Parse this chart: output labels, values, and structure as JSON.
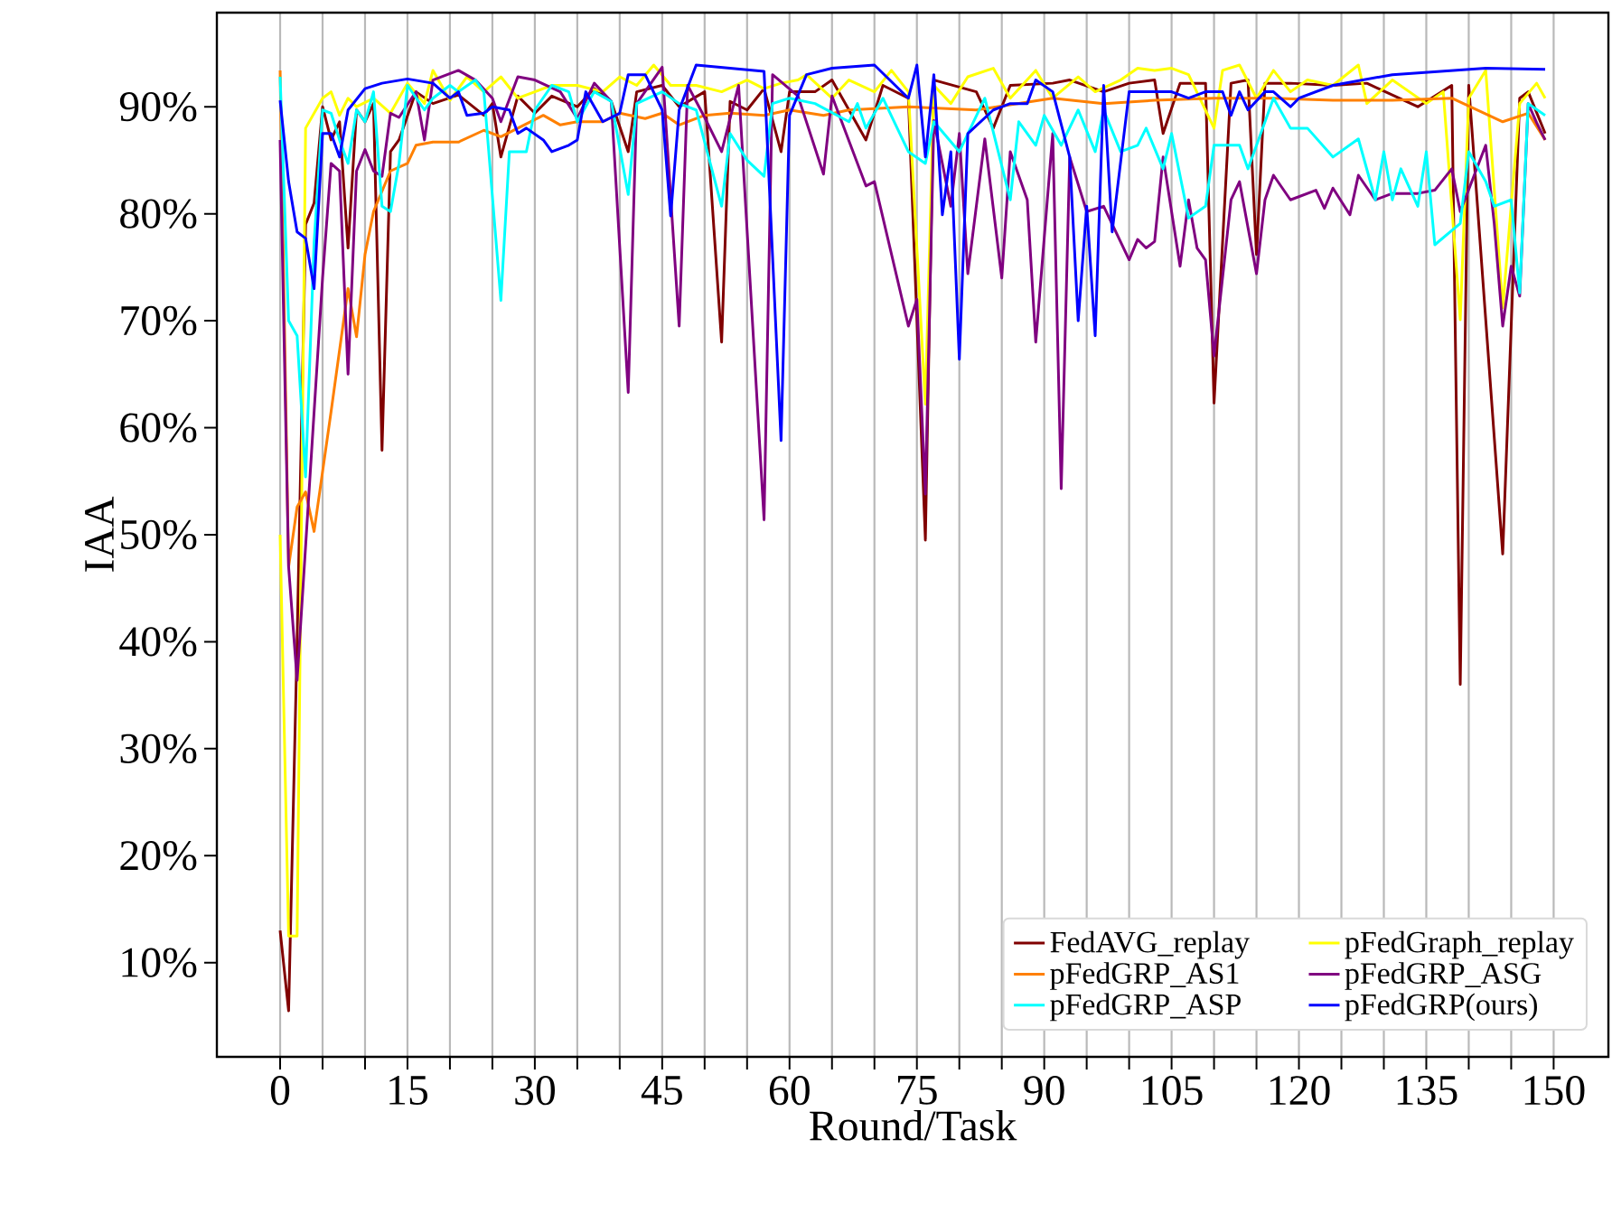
{
  "chart_data": {
    "type": "line",
    "xlabel": "Round/Task",
    "ylabel": "IAA",
    "xlim": [
      -7.45,
      156.45
    ],
    "ylim": [
      1.2,
      98.8
    ],
    "xticks": [
      0,
      {
        "value": 5,
        "label": null
      },
      {
        "value": 10,
        "label": null
      },
      15,
      {
        "value": 20,
        "label": null
      },
      {
        "value": 25,
        "label": null
      },
      30,
      {
        "value": 35,
        "label": null
      },
      {
        "value": 40,
        "label": null
      },
      45,
      {
        "value": 50,
        "label": null
      },
      {
        "value": 55,
        "label": null
      },
      60,
      {
        "value": 65,
        "label": null
      },
      {
        "value": 70,
        "label": null
      },
      75,
      {
        "value": 80,
        "label": null
      },
      {
        "value": 85,
        "label": null
      },
      90,
      {
        "value": 95,
        "label": null
      },
      {
        "value": 100,
        "label": null
      },
      105,
      {
        "value": 110,
        "label": null
      },
      {
        "value": 115,
        "label": null
      },
      120,
      {
        "value": 125,
        "label": null
      },
      {
        "value": 130,
        "label": null
      },
      135,
      {
        "value": 140,
        "label": null
      },
      {
        "value": 145,
        "label": null
      },
      150
    ],
    "yticks": [
      {
        "value": 10,
        "label": "10%"
      },
      {
        "value": 20,
        "label": "20%"
      },
      {
        "value": 30,
        "label": "30%"
      },
      {
        "value": 40,
        "label": "40%"
      },
      {
        "value": 50,
        "label": "50%"
      },
      {
        "value": 60,
        "label": "60%"
      },
      {
        "value": 70,
        "label": "70%"
      },
      {
        "value": 80,
        "label": "80%"
      },
      {
        "value": 90,
        "label": "90%"
      }
    ],
    "grid": "x",
    "legend": "bottom right",
    "marker": "none",
    "line_style": "solid",
    "series": [
      {
        "name": "FedAVG_replay",
        "color": "#800000",
        "x": [
          0,
          1,
          2,
          3,
          4,
          5,
          6,
          7,
          8,
          9,
          10,
          11,
          12,
          13,
          14,
          16,
          18,
          21,
          24,
          25,
          26,
          28,
          30,
          32,
          35,
          37,
          39,
          41,
          42,
          45,
          47,
          50,
          52,
          53,
          55,
          57,
          59,
          60,
          63,
          65,
          69,
          71,
          74,
          76,
          77,
          82,
          84,
          86,
          91,
          93,
          97,
          100,
          103,
          104,
          106,
          109,
          110,
          112,
          114,
          115,
          116,
          119,
          124,
          128,
          134,
          138,
          139,
          140,
          144,
          146,
          147,
          149
        ],
        "values": [
          13,
          5.5,
          40,
          79,
          81,
          90,
          86.9,
          88.6,
          76.8,
          89.7,
          88.6,
          90.3,
          57.9,
          85.8,
          86.9,
          91.4,
          90.3,
          91.1,
          89.2,
          90.3,
          85.3,
          91,
          89.4,
          91,
          90,
          91.7,
          90.5,
          85.8,
          91.4,
          92,
          90,
          91.4,
          68,
          90.5,
          89.7,
          91.7,
          85.8,
          91.4,
          91.4,
          92.5,
          86.9,
          92,
          90.8,
          49.5,
          92.5,
          91.4,
          88,
          92,
          92.2,
          92.5,
          91.4,
          92.2,
          92.5,
          87.5,
          92.2,
          92.2,
          62.3,
          92.2,
          92.5,
          76.2,
          92.2,
          92.2,
          92,
          92.2,
          90,
          92,
          36,
          92,
          48.2,
          90.8,
          91.4,
          87.5
        ]
      },
      {
        "name": "pFedGraph_replay",
        "color": "#ffff00",
        "x": [
          0,
          1,
          2,
          3,
          5,
          6,
          7,
          8,
          9,
          11,
          13,
          15,
          17,
          18,
          20,
          22,
          24,
          26,
          28,
          30,
          32,
          35,
          38,
          40,
          42,
          44,
          46,
          49,
          52,
          55,
          57,
          59,
          61,
          62,
          65,
          67,
          70,
          72,
          74,
          76,
          77,
          79,
          81,
          84,
          86,
          89,
          91,
          94,
          96,
          99,
          101,
          103,
          105,
          107,
          110,
          111,
          113,
          115,
          117,
          119,
          121,
          124,
          127,
          128,
          131,
          135,
          137,
          139,
          140,
          142,
          144,
          146,
          148,
          149
        ],
        "values": [
          50,
          12.5,
          12.5,
          88,
          90.8,
          91.4,
          89.2,
          90.8,
          90,
          90.8,
          89.4,
          92.2,
          90.3,
          93.4,
          90.6,
          92.8,
          91.4,
          92.8,
          90.8,
          91.4,
          92,
          92,
          91.4,
          92.8,
          92,
          93.9,
          92,
          92,
          91.4,
          92.5,
          91.7,
          92.2,
          92.5,
          93,
          90.8,
          92.5,
          91.4,
          93.4,
          91.4,
          62.2,
          92,
          90.3,
          92.8,
          93.6,
          90.8,
          93.4,
          90.8,
          92.8,
          91.4,
          92.5,
          93.6,
          93.4,
          93.6,
          93,
          88,
          93.4,
          93.9,
          90.8,
          93.4,
          91.4,
          92.5,
          92,
          93.9,
          90.3,
          92.5,
          90.3,
          91.4,
          70.1,
          90.8,
          93.4,
          71.2,
          90.3,
          92.2,
          90.8
        ]
      },
      {
        "name": "pFedGRP_AS1",
        "color": "#ff8000",
        "x": [
          0,
          1,
          2,
          3,
          4,
          6,
          8,
          9,
          10,
          11,
          13,
          15,
          16,
          18,
          21,
          24,
          26,
          28,
          31,
          33,
          35,
          38,
          40,
          43,
          45,
          47,
          50,
          53,
          57,
          60,
          64,
          67,
          74,
          82,
          91,
          97,
          103,
          110,
          117,
          124,
          131,
          138,
          144,
          147,
          149
        ],
        "values": [
          93.4,
          47,
          52.6,
          54,
          50.3,
          61.5,
          73,
          68.5,
          76.2,
          80.2,
          84,
          84.7,
          86.4,
          86.7,
          86.7,
          87.8,
          87.2,
          88,
          89.2,
          88.3,
          88.6,
          88.6,
          89.4,
          88.9,
          89.4,
          88.3,
          89.2,
          89.4,
          89.2,
          89.7,
          89.2,
          89.7,
          90,
          89.7,
          90.8,
          90.3,
          90.6,
          90.8,
          90.8,
          90.6,
          90.6,
          90.8,
          88.6,
          89.4,
          86.9
        ]
      },
      {
        "name": "pFedGRP_ASG",
        "color": "#800080",
        "x": [
          0,
          1,
          2,
          5,
          6,
          7,
          8,
          9,
          10,
          11,
          12,
          13,
          14,
          16,
          17,
          18,
          21,
          23,
          25,
          26,
          28,
          30,
          33,
          35,
          37,
          39,
          41,
          42,
          45,
          47,
          48,
          50,
          52,
          54,
          57,
          58,
          61,
          64,
          65,
          69,
          70,
          74,
          75,
          76,
          77,
          79,
          80,
          81,
          83,
          85,
          86,
          88,
          89,
          91,
          92,
          93,
          95,
          97,
          100,
          101,
          102,
          103,
          104,
          106,
          107,
          108,
          109,
          110,
          112,
          113,
          115,
          116,
          117,
          119,
          122,
          123,
          124,
          126,
          127,
          129,
          131,
          134,
          136,
          138,
          139,
          142,
          143,
          144,
          145,
          146,
          147,
          148,
          149
        ],
        "values": [
          86.9,
          47,
          36.4,
          74,
          84.7,
          84,
          65,
          84,
          86,
          84,
          83.5,
          89.4,
          89,
          91.4,
          86.9,
          92.5,
          93.4,
          92.5,
          90.8,
          88.6,
          92.8,
          92.5,
          91.4,
          88.9,
          92.2,
          90.5,
          63.3,
          90.3,
          93.7,
          69.5,
          92,
          89,
          85.8,
          92,
          51.4,
          93,
          91,
          83.7,
          91,
          82.6,
          83,
          69.5,
          72,
          53.8,
          88.7,
          80.7,
          87.5,
          74.4,
          87,
          74,
          85.8,
          81.3,
          68,
          87.5,
          54.3,
          85.3,
          80.2,
          80.7,
          75.7,
          77.6,
          76.8,
          77.4,
          85.3,
          75.1,
          81.3,
          76.8,
          75.7,
          66.7,
          81.3,
          83,
          74.4,
          81.3,
          83.6,
          81.3,
          82.2,
          80.5,
          82.4,
          79.9,
          83.6,
          81.3,
          81.9,
          81.9,
          82.2,
          84.2,
          80.2,
          86.4,
          79.1,
          69.5,
          75.1,
          72.3,
          90.3,
          88.5,
          86.9
        ]
      },
      {
        "name": "pFedGRP_ASP",
        "color": "#00ffff",
        "x": [
          0,
          1,
          2,
          3,
          4,
          5,
          6,
          7,
          8,
          9,
          10,
          11,
          12,
          13,
          14,
          15,
          17,
          18,
          20,
          21,
          23,
          24,
          26,
          27,
          29,
          30,
          32,
          34,
          35,
          37,
          39,
          41,
          42,
          45,
          47,
          49,
          52,
          53,
          55,
          57,
          58,
          60,
          63,
          67,
          68,
          69,
          71,
          74,
          76,
          77,
          80,
          83,
          86,
          87,
          89,
          90,
          92,
          94,
          96,
          97,
          99,
          101,
          102,
          104,
          105,
          107,
          109,
          110,
          113,
          114,
          117,
          119,
          121,
          124,
          127,
          129,
          130,
          131,
          132,
          134,
          135,
          136,
          139,
          140,
          142,
          143,
          145,
          146,
          147,
          149
        ],
        "values": [
          92.8,
          70,
          68.6,
          55.4,
          77.3,
          89.7,
          89.4,
          86.9,
          84.7,
          89.7,
          88.6,
          91.4,
          80.7,
          80.2,
          84.7,
          92,
          89.7,
          90.8,
          92,
          91.4,
          92.5,
          91.4,
          71.9,
          85.8,
          85.8,
          89.7,
          92,
          91.4,
          88.6,
          91.4,
          90.5,
          81.8,
          90.3,
          91.4,
          90.3,
          89.7,
          80.7,
          87.5,
          85,
          83.5,
          90.3,
          90.8,
          90.3,
          88.6,
          90.3,
          88,
          90.8,
          85.8,
          84.7,
          88.6,
          85.8,
          90.8,
          81.3,
          88.6,
          86.4,
          89.2,
          86.4,
          89.7,
          85.8,
          89.7,
          85.8,
          86.4,
          88,
          84.2,
          87.5,
          79.6,
          80.7,
          86.4,
          86.4,
          84.2,
          90.8,
          88,
          88,
          85.3,
          87,
          81.3,
          85.8,
          81.3,
          84.2,
          80.7,
          85.8,
          77.1,
          79.1,
          85.8,
          83,
          80.7,
          81.3,
          72.6,
          90.3,
          89.2
        ]
      },
      {
        "name": "pFedGRP(ours)",
        "color": "#0000ff",
        "x": [
          0,
          1,
          2,
          3,
          4,
          5,
          6,
          7,
          8,
          10,
          12,
          15,
          18,
          20,
          21,
          22,
          24,
          25,
          27,
          28,
          29,
          31,
          32,
          34,
          35,
          36,
          38,
          40,
          41,
          43,
          45,
          46,
          47,
          49,
          53,
          57,
          59,
          60,
          62,
          65,
          70,
          74,
          75,
          76,
          77,
          78,
          79,
          80,
          81,
          84,
          86,
          88,
          89,
          91,
          93,
          94,
          95,
          96,
          97,
          98,
          100,
          105,
          107,
          109,
          111,
          112,
          113,
          114,
          116,
          117,
          119,
          120,
          124,
          131,
          142,
          149
        ],
        "values": [
          90.6,
          83,
          78.3,
          77.7,
          73,
          87.5,
          87.5,
          85.3,
          89.7,
          91.7,
          92.2,
          92.6,
          92.2,
          90.8,
          91.4,
          89.2,
          89.4,
          90,
          89.7,
          87.5,
          88,
          86.9,
          85.8,
          86.4,
          86.9,
          91.4,
          88.6,
          89.4,
          93,
          93,
          89.7,
          79.8,
          89.7,
          93.9,
          93.6,
          93.3,
          58.8,
          89.2,
          93,
          93.6,
          93.9,
          90.8,
          93.9,
          85.3,
          93,
          79.9,
          85.8,
          66.4,
          87.5,
          89.7,
          90.3,
          90.3,
          92.5,
          91.4,
          85.3,
          70,
          80.7,
          68.6,
          92,
          78.3,
          91.4,
          91.4,
          90.8,
          91.4,
          91.4,
          89.2,
          91.4,
          89.7,
          91.4,
          91.4,
          90,
          90.8,
          92,
          93,
          93.6,
          93.5
        ]
      }
    ]
  }
}
